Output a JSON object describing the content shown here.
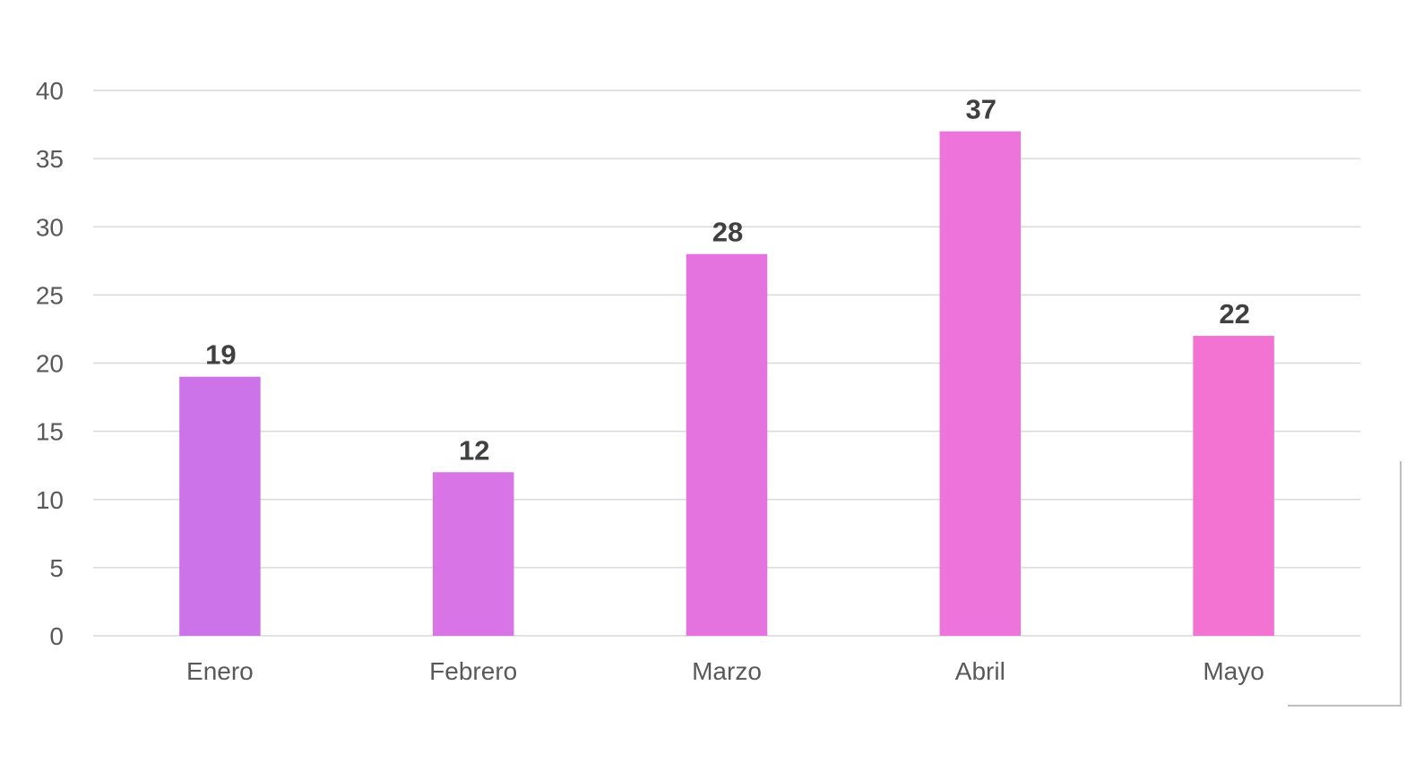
{
  "chart_data": {
    "type": "bar",
    "title": "",
    "xlabel": "",
    "ylabel": "",
    "categories": [
      "Enero",
      "Febrero",
      "Marzo",
      "Abril",
      "Mayo"
    ],
    "values": [
      19,
      12,
      28,
      37,
      22
    ],
    "bar_colors": [
      "#cc73ea",
      "#d874e6",
      "#e573df",
      "#ec74da",
      "#f373d2"
    ],
    "ylim": [
      0,
      40
    ],
    "yticks": [
      0,
      5,
      10,
      15,
      20,
      25,
      30,
      35,
      40
    ],
    "grid": true,
    "legend": "none",
    "data_labels": true
  }
}
